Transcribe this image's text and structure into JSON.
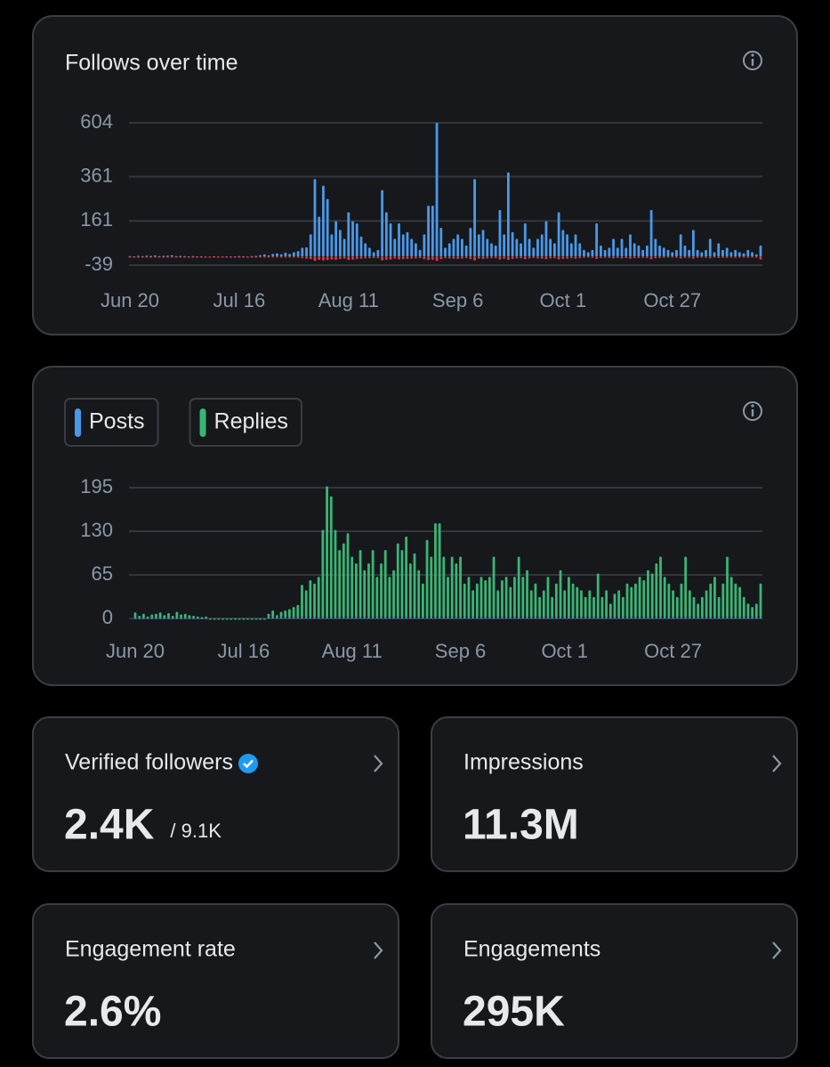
{
  "chart_data": [
    {
      "type": "bar",
      "title": "Follows over time",
      "categories": [
        "Jun 20",
        null,
        null,
        null,
        null,
        null,
        null,
        null,
        null,
        null,
        null,
        null,
        null,
        null,
        null,
        null,
        null,
        null,
        null,
        null,
        null,
        null,
        null,
        null,
        null,
        null,
        "Jul 16",
        null,
        null,
        null,
        null,
        null,
        null,
        null,
        null,
        null,
        null,
        null,
        null,
        null,
        null,
        null,
        null,
        null,
        null,
        null,
        null,
        null,
        null,
        null,
        null,
        null,
        "Aug 11",
        null,
        null,
        null,
        null,
        null,
        null,
        null,
        null,
        null,
        null,
        null,
        null,
        null,
        null,
        null,
        null,
        null,
        null,
        null,
        null,
        null,
        null,
        null,
        null,
        null,
        "Sep 6",
        null,
        null,
        null,
        null,
        null,
        null,
        null,
        null,
        null,
        null,
        null,
        null,
        null,
        null,
        null,
        null,
        null,
        null,
        null,
        null,
        null,
        null,
        null,
        null,
        "Oct 1",
        null,
        null,
        null,
        null,
        null,
        null,
        null,
        null,
        null,
        null,
        null,
        null,
        null,
        null,
        null,
        null,
        null,
        null,
        null,
        null,
        null,
        null,
        null,
        null,
        null,
        "Oct 27",
        null,
        null,
        null,
        null,
        null,
        null,
        null,
        null,
        null,
        null,
        null,
        null,
        null,
        null,
        null,
        null,
        null,
        null,
        null,
        null,
        null
      ],
      "series": [
        {
          "color": "#4a99e9",
          "values": [
            2,
            1,
            3,
            2,
            4,
            3,
            5,
            2,
            3,
            4,
            6,
            2,
            3,
            2,
            1,
            2,
            1,
            1,
            0,
            0,
            1,
            0,
            0,
            1,
            0,
            1,
            2,
            1,
            0,
            2,
            3,
            6,
            10,
            5,
            12,
            15,
            10,
            18,
            12,
            20,
            25,
            40,
            42,
            100,
            350,
            180,
            320,
            260,
            100,
            160,
            120,
            80,
            200,
            160,
            150,
            90,
            60,
            40,
            20,
            30,
            300,
            200,
            150,
            80,
            150,
            100,
            110,
            80,
            60,
            30,
            100,
            230,
            230,
            604,
            130,
            40,
            60,
            80,
            100,
            80,
            50,
            130,
            350,
            100,
            120,
            80,
            60,
            50,
            210,
            100,
            380,
            110,
            80,
            60,
            150,
            80,
            40,
            80,
            100,
            160,
            80,
            60,
            200,
            120,
            100,
            60,
            100,
            60,
            30,
            20,
            30,
            150,
            50,
            30,
            40,
            80,
            40,
            80,
            40,
            100,
            60,
            50,
            30,
            50,
            210,
            80,
            50,
            40,
            30,
            20,
            30,
            100,
            50,
            30,
            120,
            30,
            20,
            30,
            80,
            20,
            60,
            30,
            40,
            20,
            30,
            20,
            15,
            30,
            20,
            10,
            50
          ]
        },
        {
          "color": "#e0383e",
          "values": [
            -2,
            -1,
            -2,
            -1,
            -3,
            -2,
            -2,
            -1,
            -2,
            -3,
            -2,
            -1,
            -2,
            -1,
            -1,
            -2,
            -1,
            -1,
            0,
            0,
            -1,
            0,
            0,
            -1,
            0,
            -1,
            -1,
            -1,
            0,
            -1,
            -2,
            -2,
            -3,
            -2,
            -3,
            -4,
            -3,
            -4,
            -3,
            -5,
            -6,
            -8,
            -10,
            -12,
            -20,
            -15,
            -18,
            -16,
            -14,
            -15,
            -12,
            -10,
            -16,
            -14,
            -12,
            -10,
            -9,
            -8,
            -7,
            -8,
            -18,
            -15,
            -14,
            -10,
            -13,
            -12,
            -11,
            -10,
            -9,
            -8,
            -12,
            -16,
            -15,
            -20,
            -12,
            -8,
            -9,
            -10,
            -11,
            -10,
            -8,
            -12,
            -18,
            -10,
            -11,
            -9,
            -8,
            -8,
            -14,
            -10,
            -16,
            -11,
            -9,
            -8,
            -12,
            -9,
            -7,
            -9,
            -10,
            -12,
            -9,
            -8,
            -13,
            -11,
            -10,
            -8,
            -10,
            -8,
            -6,
            -5,
            -6,
            -11,
            -7,
            -6,
            -7,
            -9,
            -7,
            -9,
            -7,
            -10,
            -8,
            -7,
            -6,
            -7,
            -12,
            -8,
            -7,
            -6,
            -5,
            -5,
            -6,
            -9,
            -7,
            -6,
            -10,
            -6,
            -5,
            -6,
            -8,
            -5,
            -7,
            -6,
            -6,
            -5,
            -6,
            -5,
            -5,
            -6,
            -5,
            -4,
            -14
          ]
        }
      ],
      "ylim": [
        -39,
        604
      ],
      "yticks": [
        -39,
        161,
        361,
        604
      ],
      "grid": true
    },
    {
      "type": "bar",
      "stacked": true,
      "categories": [
        "Jun 20",
        null,
        null,
        null,
        null,
        null,
        null,
        null,
        null,
        null,
        null,
        null,
        null,
        null,
        null,
        null,
        null,
        null,
        null,
        null,
        null,
        null,
        null,
        null,
        null,
        null,
        "Jul 16",
        null,
        null,
        null,
        null,
        null,
        null,
        null,
        null,
        null,
        null,
        null,
        null,
        null,
        null,
        null,
        null,
        null,
        null,
        null,
        null,
        null,
        null,
        null,
        null,
        null,
        "Aug 11",
        null,
        null,
        null,
        null,
        null,
        null,
        null,
        null,
        null,
        null,
        null,
        null,
        null,
        null,
        null,
        null,
        null,
        null,
        null,
        null,
        null,
        null,
        null,
        null,
        null,
        "Sep 6",
        null,
        null,
        null,
        null,
        null,
        null,
        null,
        null,
        null,
        null,
        null,
        null,
        null,
        null,
        null,
        null,
        null,
        null,
        null,
        null,
        null,
        null,
        null,
        null,
        "Oct 1",
        null,
        null,
        null,
        null,
        null,
        null,
        null,
        null,
        null,
        null,
        null,
        null,
        null,
        null,
        null,
        null,
        null,
        null,
        null,
        null,
        null,
        null,
        null,
        null,
        null,
        "Oct 27",
        null,
        null,
        null,
        null,
        null,
        null,
        null,
        null,
        null,
        null,
        null,
        null,
        null,
        null,
        null,
        null,
        null,
        null,
        null,
        null,
        null
      ],
      "series": [
        {
          "name": "Posts",
          "color": "#4a99e9",
          "values": [
            1,
            1,
            1,
            1,
            1,
            1,
            1,
            1,
            1,
            1,
            1,
            1,
            1,
            1,
            1,
            1,
            1,
            1,
            0,
            0,
            0,
            0,
            0,
            0,
            0,
            0,
            0,
            0,
            0,
            0,
            0,
            0,
            2,
            2,
            2,
            2,
            2,
            2,
            2,
            2,
            2,
            2,
            2,
            2,
            2,
            2,
            2,
            2,
            2,
            2,
            2,
            2,
            2,
            2,
            2,
            2,
            2,
            2,
            2,
            2,
            2,
            2,
            2,
            2,
            2,
            2,
            2,
            2,
            2,
            2,
            2,
            2,
            2,
            2,
            2,
            2,
            2,
            2,
            2,
            2,
            2,
            2,
            2,
            2,
            2,
            2,
            2,
            2,
            2,
            2,
            2,
            2,
            2,
            2,
            2,
            2,
            2,
            2,
            2,
            2,
            2,
            2,
            2,
            2,
            2,
            2,
            2,
            2,
            2,
            2,
            2,
            2,
            2,
            2,
            2,
            2,
            2,
            2,
            2,
            2,
            2,
            2,
            2,
            2,
            2,
            2,
            2,
            2,
            2,
            2,
            2,
            2,
            2,
            2,
            2,
            2,
            2,
            2,
            2,
            2,
            2,
            2,
            2,
            2,
            2,
            2,
            2,
            2,
            2,
            2,
            2
          ]
        },
        {
          "name": "Replies",
          "color": "#3bb574",
          "values": [
            8,
            3,
            6,
            2,
            5,
            6,
            8,
            4,
            7,
            3,
            9,
            5,
            6,
            4,
            3,
            2,
            1,
            2,
            0,
            0,
            0,
            0,
            0,
            0,
            0,
            0,
            0,
            0,
            0,
            0,
            0,
            0,
            5,
            10,
            3,
            8,
            10,
            12,
            15,
            18,
            48,
            40,
            55,
            50,
            60,
            130,
            195,
            180,
            130,
            100,
            110,
            125,
            90,
            80,
            100,
            70,
            80,
            100,
            60,
            80,
            100,
            60,
            70,
            110,
            100,
            120,
            80,
            95,
            70,
            50,
            115,
            90,
            140,
            140,
            90,
            60,
            90,
            80,
            90,
            50,
            60,
            40,
            50,
            60,
            55,
            60,
            90,
            40,
            55,
            60,
            45,
            60,
            90,
            60,
            70,
            40,
            50,
            30,
            40,
            60,
            30,
            50,
            70,
            40,
            60,
            50,
            45,
            40,
            30,
            40,
            30,
            65,
            30,
            40,
            20,
            35,
            40,
            30,
            50,
            45,
            50,
            60,
            55,
            70,
            65,
            80,
            90,
            60,
            50,
            40,
            30,
            50,
            90,
            40,
            30,
            20,
            30,
            40,
            50,
            60,
            30,
            50,
            90,
            60,
            50,
            45,
            30,
            20,
            15,
            20,
            50
          ]
        }
      ],
      "ylim": [
        0,
        195
      ],
      "yticks": [
        0,
        65,
        130,
        195
      ],
      "grid": true
    }
  ],
  "cards": [
    {
      "label": "Verified followers",
      "value": "2.4K",
      "total": "/ 9.1K"
    },
    {
      "label": "Impressions",
      "value": "11.3M"
    },
    {
      "label": "Engagement rate",
      "value": "2.6%"
    },
    {
      "label": "Engagements",
      "value": "295K"
    }
  ]
}
